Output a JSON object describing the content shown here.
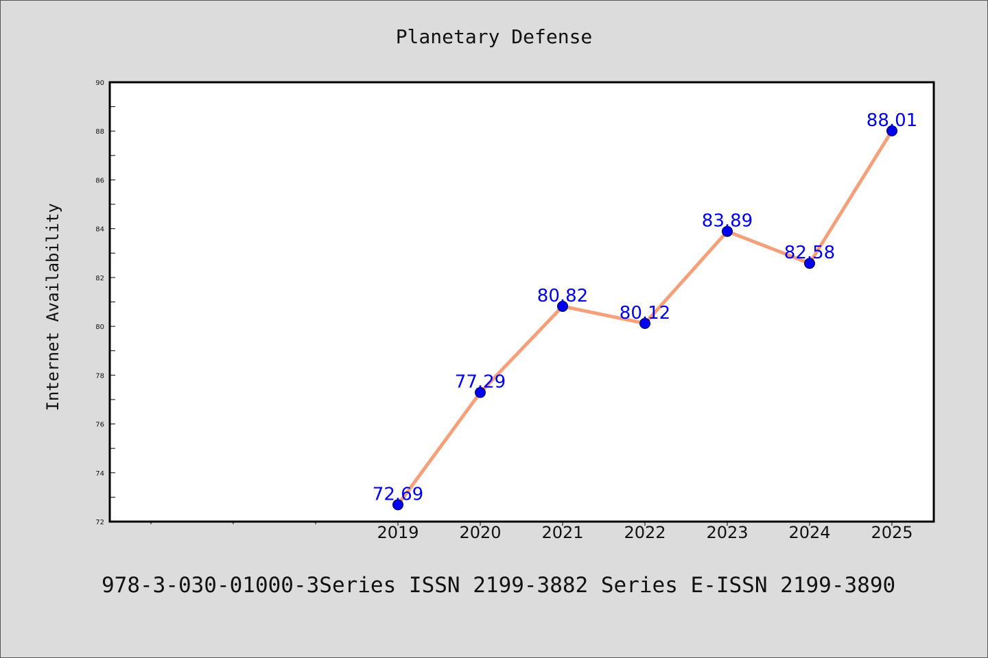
{
  "chart_data": {
    "type": "line",
    "title": "Planetary Defense",
    "xlabel": "",
    "ylabel": "Internet Availability",
    "x": [
      "2019",
      "2020",
      "2021",
      "2022",
      "2023",
      "2024",
      "2025"
    ],
    "series": [
      {
        "values": [
          72.69,
          77.29,
          80.82,
          80.12,
          83.89,
          82.58,
          88.01
        ]
      }
    ],
    "data_labels": [
      "72.69",
      "77.29",
      "80.82",
      "80.12",
      "83.89",
      "82.58",
      "88.01"
    ],
    "ylim": [
      72,
      90
    ],
    "yticks": [
      "72",
      "74",
      "76",
      "78",
      "80",
      "82",
      "84",
      "86",
      "88",
      "90"
    ],
    "grid": false,
    "legend": "none",
    "colors": {
      "line": "#f4a07a",
      "marker": "#0000ee",
      "data_label": "#0000ee",
      "background": "#dcdcdc",
      "plot_background": "#ffffff"
    }
  },
  "footer": {
    "text": "978-3-030-01000-3Series ISSN 2199-3882 Series E-ISSN 2199-3890"
  }
}
